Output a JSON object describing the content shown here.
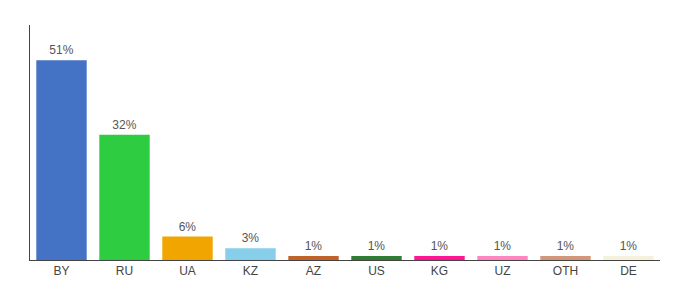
{
  "chart_data": {
    "type": "bar",
    "categories": [
      "BY",
      "RU",
      "UA",
      "KZ",
      "AZ",
      "US",
      "KG",
      "UZ",
      "OTH",
      "DE"
    ],
    "values": [
      51,
      32,
      6,
      3,
      1,
      1,
      1,
      1,
      1,
      1
    ],
    "value_labels": [
      "51%",
      "32%",
      "6%",
      "3%",
      "1%",
      "1%",
      "1%",
      "1%",
      "1%",
      "1%"
    ],
    "colors": [
      "#4472C4",
      "#2ECC40",
      "#F0A500",
      "#87CEEB",
      "#C0622A",
      "#2E7D32",
      "#FF1493",
      "#FF85C0",
      "#D2977A",
      "#F5F0DC"
    ],
    "ylim": [
      0,
      60
    ],
    "grid": false,
    "data_labels": true,
    "tick_labels": "x"
  }
}
